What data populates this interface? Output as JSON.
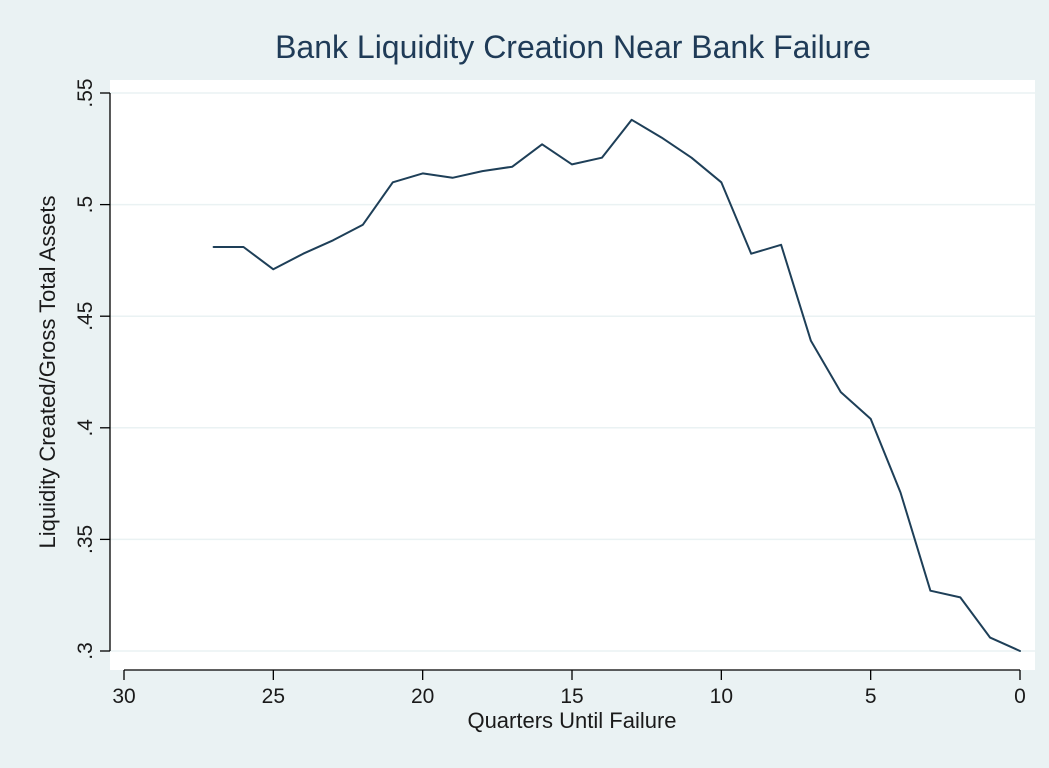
{
  "chart_data": {
    "type": "line",
    "title": "Bank Liquidity Creation Near Bank Failure",
    "xlabel": "Quarters Until Failure",
    "ylabel": "Liquidity Created/Gross Total Assets",
    "x_reversed": true,
    "xlim": [
      30,
      0
    ],
    "ylim": [
      0.3,
      0.55
    ],
    "x_ticks": [
      30,
      25,
      20,
      15,
      10,
      5,
      0
    ],
    "x_tick_labels": [
      "30",
      "25",
      "20",
      "15",
      "10",
      "5",
      "0"
    ],
    "y_ticks": [
      0.3,
      0.35,
      0.4,
      0.45,
      0.5,
      0.55
    ],
    "y_tick_labels": [
      ".3",
      ".35",
      ".4",
      ".45",
      ".5",
      ".55"
    ],
    "grid": "horizontal",
    "legend": "none",
    "series": [
      {
        "x": [
          27,
          26,
          25,
          24,
          23,
          22,
          21,
          20,
          19,
          18,
          17,
          16,
          15,
          14,
          13,
          12,
          11,
          10,
          9,
          8,
          7,
          6,
          5,
          4,
          3,
          2,
          1,
          0
        ],
        "y": [
          0.481,
          0.481,
          0.471,
          0.478,
          0.484,
          0.491,
          0.51,
          0.514,
          0.512,
          0.515,
          0.517,
          0.527,
          0.518,
          0.521,
          0.538,
          0.53,
          0.521,
          0.51,
          0.478,
          0.482,
          0.439,
          0.416,
          0.404,
          0.371,
          0.327,
          0.324,
          0.306,
          0.3
        ]
      }
    ],
    "colors": {
      "background": "#eaf2f3",
      "plot_area": "#ffffff",
      "line": "#1e3f58",
      "grid": "#eaf2f3",
      "axis": "#000000",
      "title": "#1f3b57"
    }
  }
}
